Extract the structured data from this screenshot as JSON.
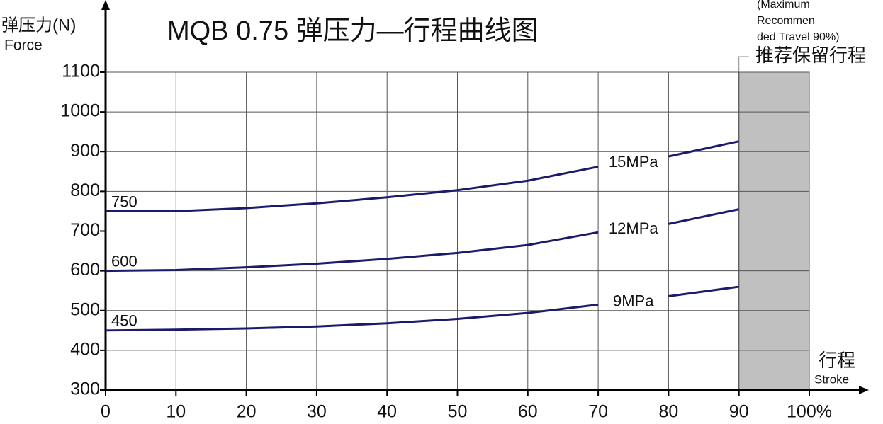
{
  "chart_data": {
    "type": "line",
    "title": "MQB 0.75 弹压力—行程曲线图",
    "y_label": [
      "弹压力(N)",
      "Force"
    ],
    "x_label": [
      "行程",
      "Stroke"
    ],
    "x": [
      0,
      10,
      20,
      30,
      40,
      50,
      60,
      70,
      75,
      80,
      90
    ],
    "series": [
      {
        "name": "15MPa",
        "color": "#1c1a6b",
        "values": [
          750,
          750,
          758,
          770,
          785,
          803,
          827,
          862,
          null,
          888,
          926
        ]
      },
      {
        "name": "12MPa",
        "color": "#1c1a6b",
        "values": [
          600,
          602,
          609,
          618,
          630,
          645,
          665,
          697,
          null,
          718,
          755
        ]
      },
      {
        "name": "9MPa",
        "color": "#1c1a6b",
        "values": [
          450,
          452,
          455,
          460,
          468,
          479,
          494,
          515,
          null,
          536,
          560
        ]
      }
    ],
    "xlim": [
      0,
      100
    ],
    "ylim": [
      300,
      1100
    ],
    "xticks": [
      0,
      10,
      20,
      30,
      40,
      50,
      60,
      70,
      80,
      90,
      {
        "value": 100,
        "label": "100%"
      }
    ],
    "yticks": [
      300,
      400,
      500,
      600,
      700,
      800,
      900,
      1000,
      1100
    ],
    "grid": true,
    "shaded_region": {
      "x": [
        90,
        100
      ],
      "color": "#c0c0c0",
      "label": "推荐保留行程",
      "note": [
        "(Maximum",
        "Recommen",
        "ded Travel 90%)"
      ]
    }
  }
}
